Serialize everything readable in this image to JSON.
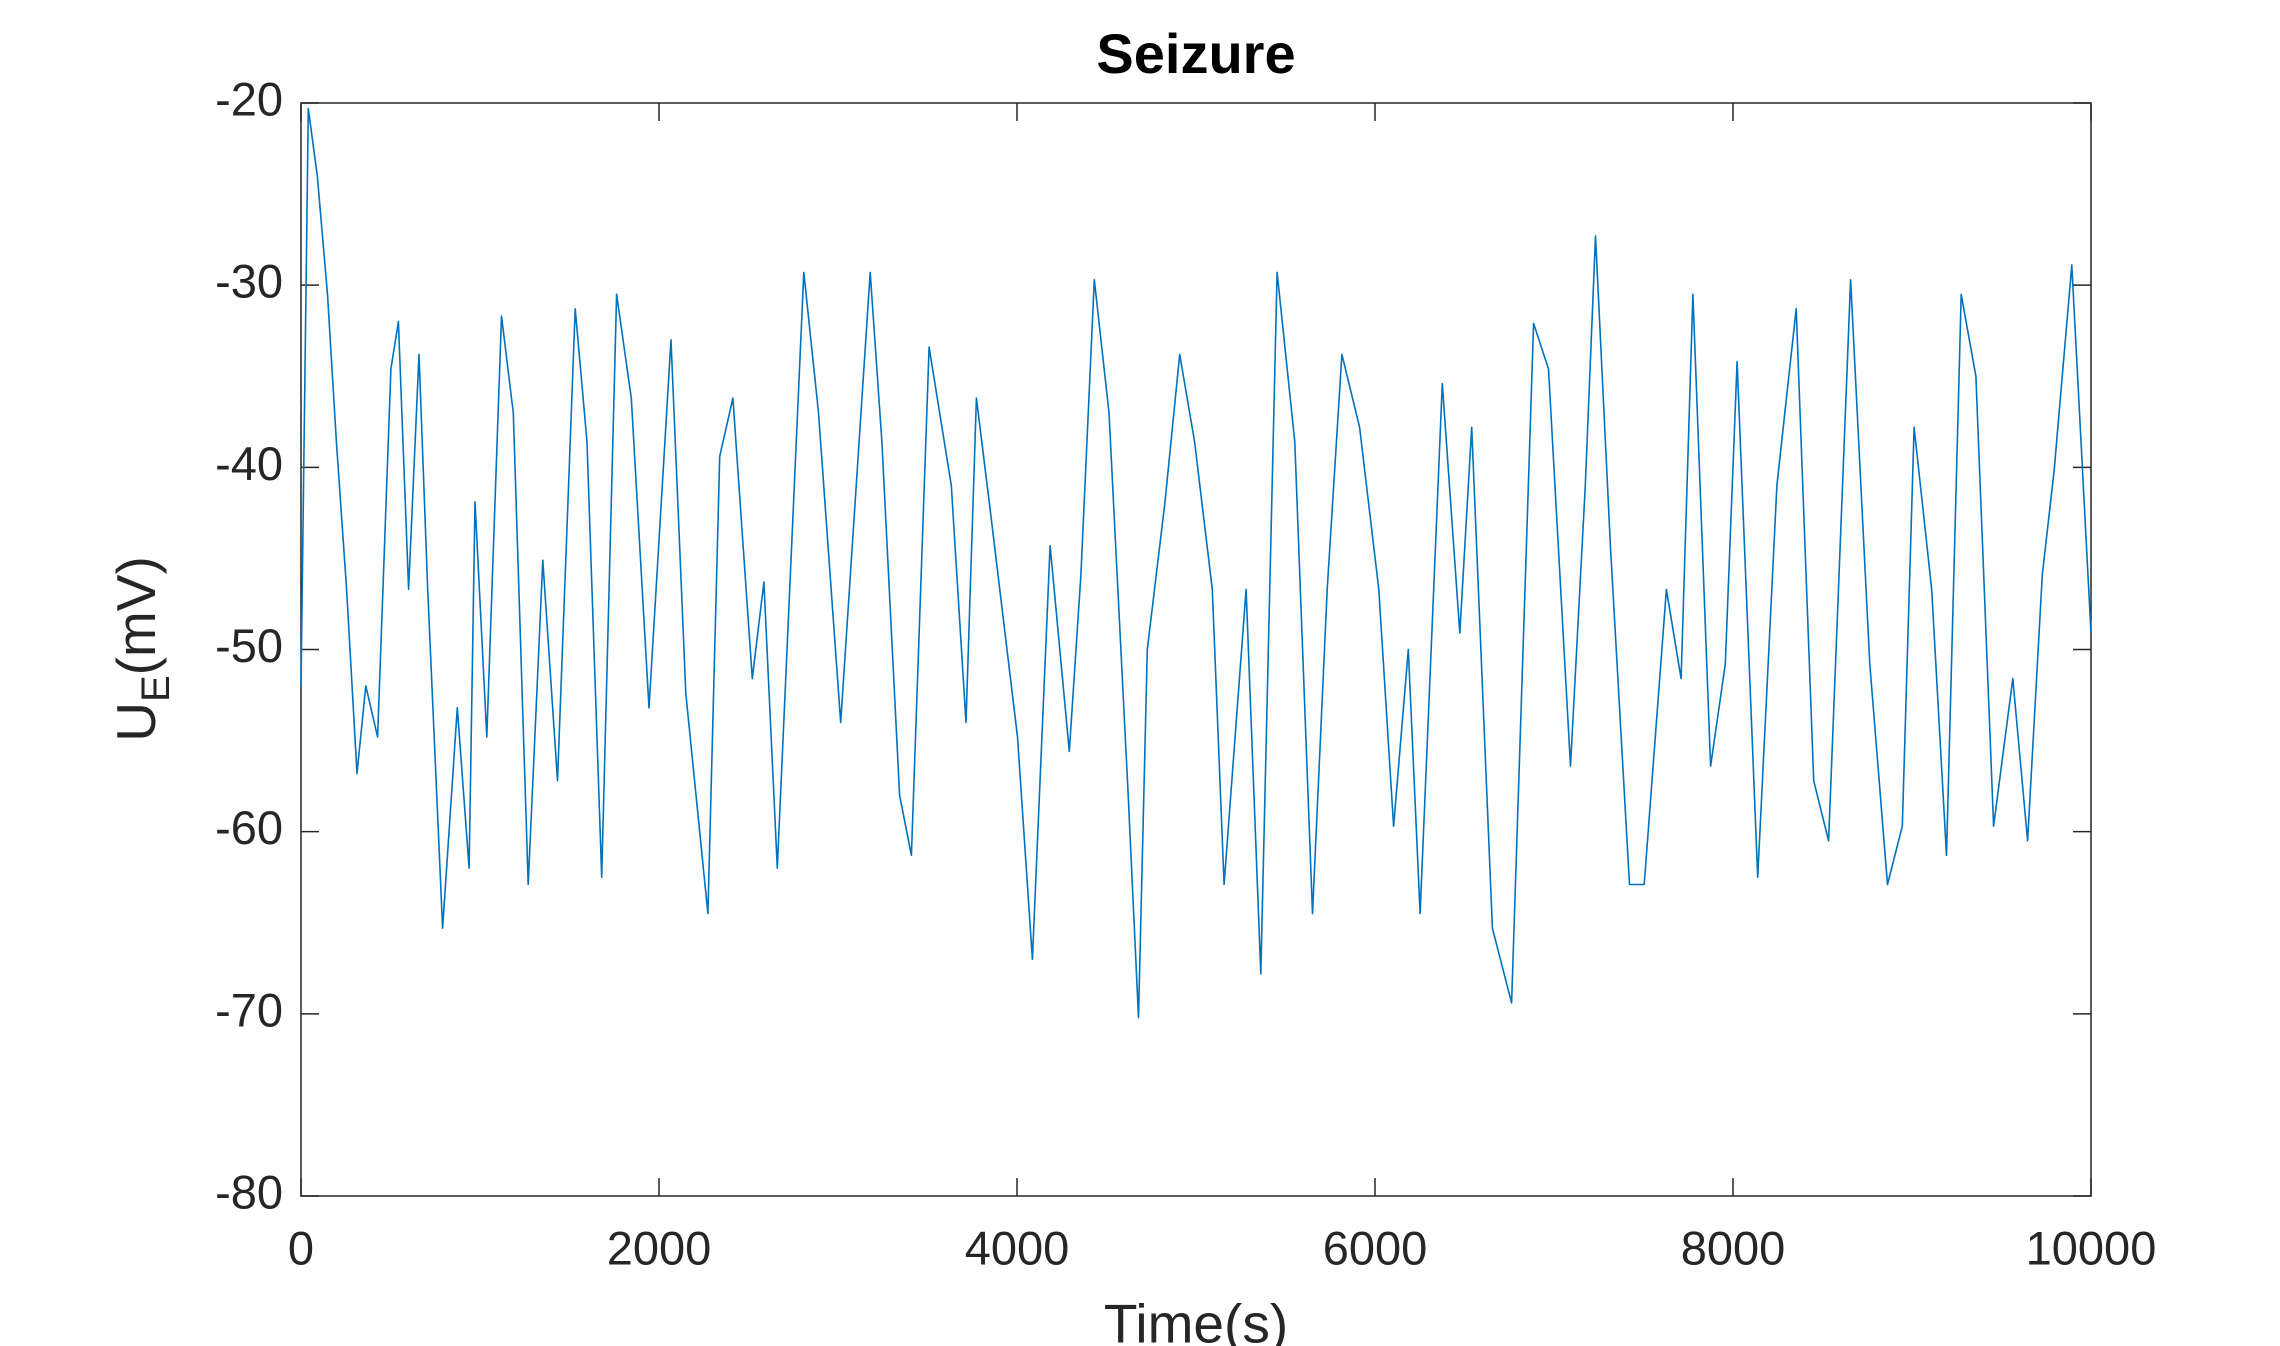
{
  "chart_data": {
    "type": "line",
    "title": "Seizure",
    "xlabel": "Time(s)",
    "ylabel": {
      "main": "U",
      "sub": "E",
      "rest": "(mV)"
    },
    "color": "#0072BD",
    "xlim": [
      0,
      10000
    ],
    "xticks": [
      0,
      2000,
      4000,
      6000,
      8000,
      10000
    ],
    "ylim": [
      -80,
      -20
    ],
    "yticks": [
      -80,
      -70,
      -60,
      -50,
      -40,
      -30,
      -20
    ],
    "grid": false,
    "x": [
      0,
      41,
      91,
      148,
      198,
      255,
      313,
      362,
      428,
      502,
      544,
      601,
      659,
      708,
      791,
      873,
      939,
      972,
      1038,
      1120,
      1186,
      1269,
      1351,
      1433,
      1532,
      1598,
      1680,
      1763,
      1845,
      1944,
      2067,
      2150,
      2273,
      2339,
      2413,
      2521,
      2586,
      2661,
      2809,
      2891,
      3015,
      3180,
      3245,
      3344,
      3410,
      3509,
      3633,
      3715,
      3773,
      3855,
      4003,
      4086,
      4185,
      4292,
      4357,
      4432,
      4514,
      4621,
      4679,
      4728,
      4827,
      4909,
      4992,
      5091,
      5157,
      5280,
      5362,
      5453,
      5552,
      5651,
      5733,
      5815,
      5914,
      6021,
      6104,
      6186,
      6252,
      6376,
      6474,
      6540,
      6656,
      6763,
      6886,
      6969,
      7092,
      7175,
      7232,
      7315,
      7422,
      7504,
      7628,
      7710,
      7776,
      7875,
      7957,
      8023,
      8138,
      8245,
      8353,
      8451,
      8534,
      8657,
      8764,
      8863,
      8946,
      9012,
      9110,
      9193,
      9275,
      9357,
      9456,
      9563,
      9646,
      9728,
      9794,
      9893,
      10000
    ],
    "values": [
      -52,
      -20.3,
      -24,
      -30.5,
      -38.6,
      -46.7,
      -56.8,
      -52,
      -54.8,
      -34.6,
      -32,
      -46.7,
      -33.8,
      -46.7,
      -65.3,
      -53.2,
      -62,
      -41.9,
      -54.8,
      -31.7,
      -37,
      -62.9,
      -45.1,
      -57.2,
      -31.3,
      -38.6,
      -62.5,
      -30.5,
      -36.2,
      -53.2,
      -33,
      -52.4,
      -64.5,
      -39.4,
      -36.2,
      -51.6,
      -46.3,
      -62,
      -29.3,
      -37,
      -54,
      -29.3,
      -38.6,
      -58,
      -61.3,
      -33.4,
      -41,
      -54,
      -36.2,
      -42.7,
      -54.8,
      -67,
      -44.3,
      -55.6,
      -45.9,
      -29.7,
      -37,
      -58,
      -70.2,
      -50,
      -41.9,
      -33.8,
      -38.6,
      -46.7,
      -62.9,
      -46.7,
      -67.8,
      -29.3,
      -38.6,
      -64.5,
      -46.7,
      -33.8,
      -37.8,
      -46.7,
      -59.7,
      -50,
      -64.5,
      -35.4,
      -49.1,
      -37.8,
      -65.3,
      -69.4,
      -32.1,
      -34.6,
      -56.4,
      -41,
      -27.3,
      -44.3,
      -62.9,
      -62.9,
      -46.7,
      -51.6,
      -30.5,
      -56.4,
      -50.8,
      -34.2,
      -62.5,
      -41,
      -31.3,
      -57.2,
      -60.5,
      -29.7,
      -50.8,
      -62.9,
      -59.7,
      -37.8,
      -46.7,
      -61.3,
      -30.5,
      -35,
      -59.7,
      -51.6,
      -60.5,
      -45.9,
      -40.2,
      -28.9,
      -49.1
    ]
  }
}
